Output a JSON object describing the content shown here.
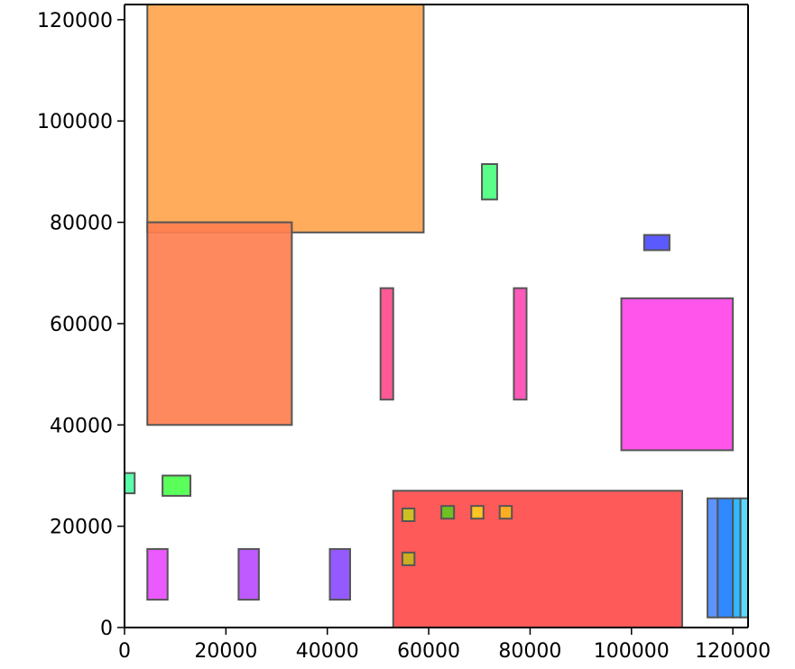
{
  "chart_data": {
    "type": "rectangles",
    "title": "",
    "xlabel": "",
    "ylabel": "",
    "xlim": [
      0,
      123000
    ],
    "ylim": [
      0,
      123000
    ],
    "grid": false,
    "legend": "none",
    "xticks": [
      0,
      20000,
      40000,
      60000,
      80000,
      100000,
      120000
    ],
    "yticks": [
      0,
      20000,
      40000,
      60000,
      80000,
      100000,
      120000
    ],
    "xtick_labels": [
      "0",
      "20000",
      "40000",
      "60000",
      "80000",
      "100000",
      "120000"
    ],
    "ytick_labels": [
      "0",
      "20000",
      "40000",
      "60000",
      "80000",
      "100000",
      "120000"
    ],
    "rects": [
      {
        "id": "big-orange",
        "x0": 4500,
        "y0": 78000,
        "x1": 59000,
        "y1": 123000,
        "color": "#FFA54F"
      },
      {
        "id": "coral-block",
        "x0": 4500,
        "y0": 40000,
        "x1": 33000,
        "y1": 80000,
        "color": "#FF7F50"
      },
      {
        "id": "red-block",
        "x0": 53000,
        "y0": 0,
        "x1": 110000,
        "y1": 27000,
        "color": "#FF4C4C"
      },
      {
        "id": "magenta-block",
        "x0": 98000,
        "y0": 35000,
        "x1": 120000,
        "y1": 65000,
        "color": "#FF47E8"
      },
      {
        "id": "pink-bar-left",
        "x0": 50500,
        "y0": 45000,
        "x1": 53000,
        "y1": 67000,
        "color": "#FF4C8B"
      },
      {
        "id": "pink-bar-right",
        "x0": 76800,
        "y0": 45000,
        "x1": 79300,
        "y1": 67000,
        "color": "#FF4CB4"
      },
      {
        "id": "green-small-top",
        "x0": 70500,
        "y0": 84500,
        "x1": 73500,
        "y1": 91500,
        "color": "#4CFF7F"
      },
      {
        "id": "blue-small",
        "x0": 102500,
        "y0": 74500,
        "x1": 107500,
        "y1": 77500,
        "color": "#4C4CFF"
      },
      {
        "id": "cyan-left-edge",
        "x0": 0,
        "y0": 26500,
        "x1": 2000,
        "y1": 30500,
        "color": "#4CFFA5"
      },
      {
        "id": "lime-small",
        "x0": 7500,
        "y0": 26000,
        "x1": 13000,
        "y1": 30000,
        "color": "#4CFF4C"
      },
      {
        "id": "magenta-bar-1",
        "x0": 4500,
        "y0": 5500,
        "x1": 8500,
        "y1": 15500,
        "color": "#E84CFF"
      },
      {
        "id": "purple-bar-2",
        "x0": 22500,
        "y0": 5500,
        "x1": 26500,
        "y1": 15500,
        "color": "#B84CFF"
      },
      {
        "id": "violet-bar-3",
        "x0": 40500,
        "y0": 5500,
        "x1": 44500,
        "y1": 15500,
        "color": "#8B4CFF"
      },
      {
        "id": "olive-square-1",
        "x0": 54800,
        "y0": 21000,
        "x1": 57200,
        "y1": 23500,
        "color": "#C8C81E"
      },
      {
        "id": "olive-square-2",
        "x0": 54800,
        "y0": 12300,
        "x1": 57200,
        "y1": 14800,
        "color": "#C8B41E"
      },
      {
        "id": "green-square",
        "x0": 62500,
        "y0": 21500,
        "x1": 65000,
        "y1": 24000,
        "color": "#64C81E"
      },
      {
        "id": "yellow-square-1",
        "x0": 68400,
        "y0": 21500,
        "x1": 70800,
        "y1": 24000,
        "color": "#FFCC1E"
      },
      {
        "id": "yellow-square-2",
        "x0": 74000,
        "y0": 21500,
        "x1": 76400,
        "y1": 24000,
        "color": "#FFB41E"
      },
      {
        "id": "blue-stack-1",
        "x0": 115000,
        "y0": 2000,
        "x1": 117000,
        "y1": 25500,
        "color": "#4C8BFF"
      },
      {
        "id": "blue-stack-2",
        "x0": 117000,
        "y0": 2000,
        "x1": 120000,
        "y1": 25500,
        "color": "#1E7FFF"
      },
      {
        "id": "blue-stack-3",
        "x0": 120000,
        "y0": 2000,
        "x1": 121500,
        "y1": 25500,
        "color": "#1EB4FF"
      },
      {
        "id": "blue-stack-4",
        "x0": 121500,
        "y0": 2000,
        "x1": 123000,
        "y1": 25500,
        "color": "#4CD4FF"
      }
    ]
  }
}
